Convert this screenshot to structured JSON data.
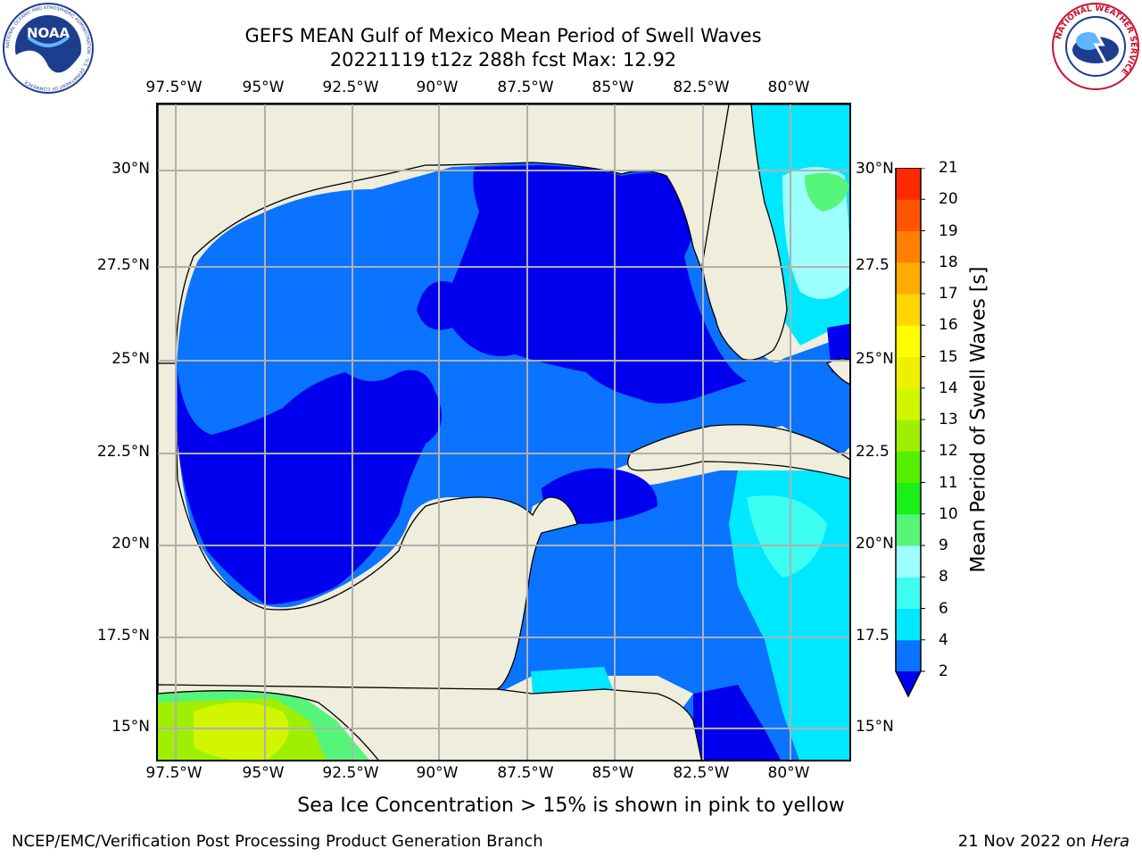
{
  "title": {
    "line1": "GEFS MEAN Gulf of Mexico Mean Period of Swell Waves",
    "line2": "20221119 t12z 288h fcst   Max: 12.92"
  },
  "axes": {
    "longitude_labels": [
      "97.5°W",
      "95°W",
      "92.5°W",
      "90°W",
      "87.5°W",
      "85°W",
      "82.5°W",
      "80°W"
    ],
    "latitude_labels": [
      "30°N",
      "27.5°N",
      "25°N",
      "22.5°N",
      "20°N",
      "17.5°N",
      "15°N"
    ],
    "latitude_labels_right": [
      "30°N",
      "27.5",
      "25°N",
      "22.5",
      "20°N",
      "17.5",
      "15°N"
    ]
  },
  "colorbar": {
    "title": "Mean Period of Swell Waves [s]",
    "ticks": [
      "2",
      "4",
      "6",
      "8",
      "9",
      "10",
      "11",
      "12",
      "13",
      "14",
      "15",
      "16",
      "17",
      "18",
      "19",
      "20",
      "21"
    ],
    "colors": [
      "#0a73ff",
      "#00e8ff",
      "#3cfff2",
      "#9effff",
      "#55f57a",
      "#18f018",
      "#54f000",
      "#9ef000",
      "#d2f500",
      "#eef000",
      "#ffff00",
      "#ffd500",
      "#ffac00",
      "#ff8000",
      "#ff5500",
      "#ff2a00",
      "#ff0000"
    ],
    "under_color": "#0000ee"
  },
  "map_colors": {
    "land": "#efeddb",
    "deep_blue": "#0000ee",
    "mid_blue": "#0a73ff",
    "cyan": "#00e8ff",
    "light_cyan": "#3cfff2",
    "pale_cyan": "#9effff",
    "green": "#55f57a",
    "lime": "#9ef000",
    "yellow_green": "#d2f500"
  },
  "logos": {
    "noaa": {
      "text": "NOAA",
      "ring_text": "NATIONAL OCEANIC AND ATMOSPHERIC ADMINISTRATION · U.S. DEPARTMENT OF COMMERCE"
    },
    "nws": {
      "ring_text": "NATIONAL WEATHER SERVICE"
    }
  },
  "footer": {
    "note": "Sea Ice Concentration > 15% is shown in pink to yellow",
    "left": "NCEP/EMC/Verification Post Processing Product Generation Branch",
    "right_date": "21 Nov 2022 on ",
    "right_host": "Hera"
  }
}
